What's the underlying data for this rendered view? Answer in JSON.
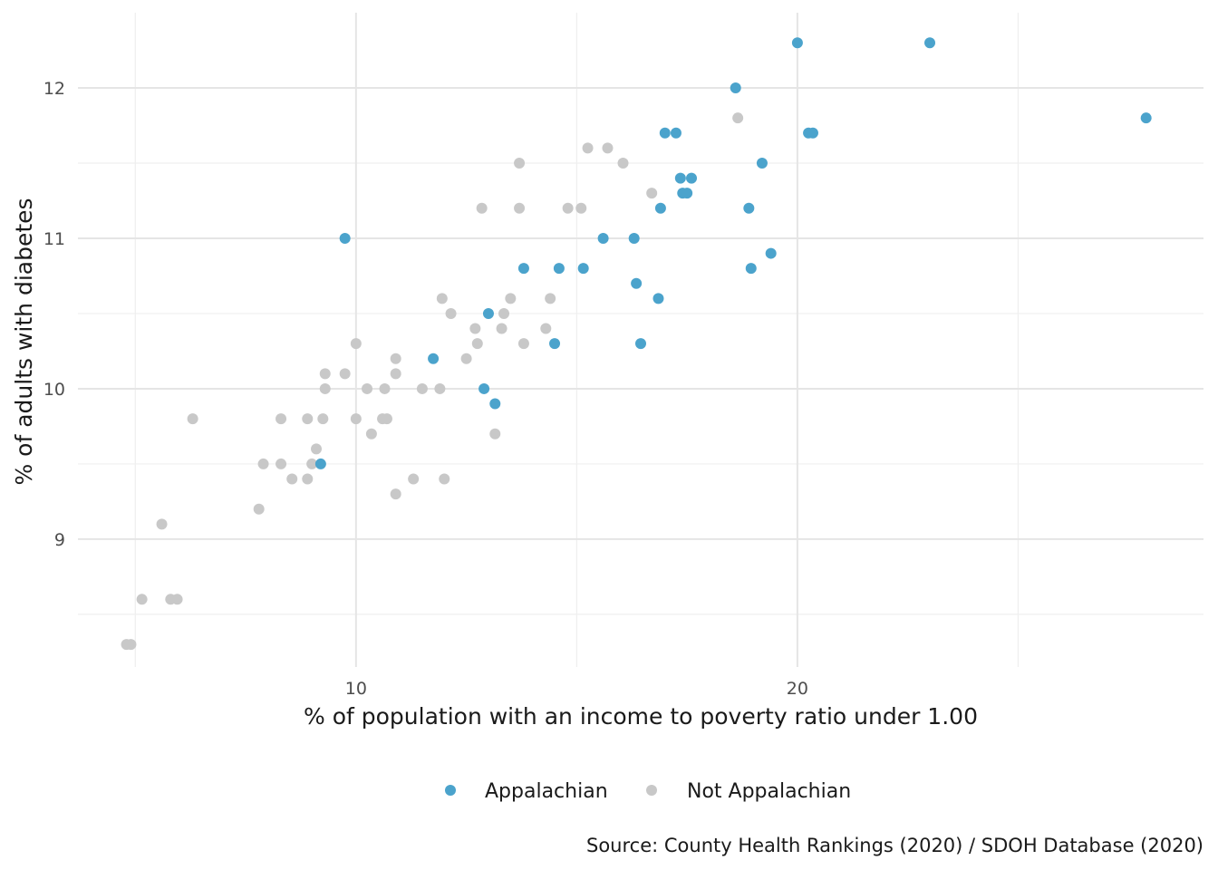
{
  "chart_data": {
    "type": "scatter",
    "xlabel": "% of population with an income to poverty ratio under 1.00",
    "ylabel": "% of adults with diabetes",
    "caption": "Source: County Health Rankings (2020) / SDOH Database (2020)",
    "xlim": [
      3.7,
      29.2
    ],
    "ylim": [
      8.15,
      12.5
    ],
    "x_ticks": [
      10,
      20
    ],
    "x_minor_ticks": [
      5,
      15,
      25
    ],
    "y_ticks": [
      9,
      10,
      11,
      12
    ],
    "y_minor_ticks": [
      8.5,
      9.5,
      10.5,
      11.5
    ],
    "grid": true,
    "legend_position": "bottom",
    "series": [
      {
        "name": "Appalachian",
        "color": "#4ba3cc",
        "points": [
          [
            20.0,
            12.3
          ],
          [
            23.0,
            12.3
          ],
          [
            18.6,
            12.0
          ],
          [
            27.9,
            11.8
          ],
          [
            17.0,
            11.7
          ],
          [
            17.25,
            11.7
          ],
          [
            20.25,
            11.7
          ],
          [
            20.35,
            11.7
          ],
          [
            19.2,
            11.5
          ],
          [
            17.35,
            11.4
          ],
          [
            17.6,
            11.4
          ],
          [
            17.4,
            11.3
          ],
          [
            17.5,
            11.3
          ],
          [
            16.9,
            11.2
          ],
          [
            18.9,
            11.2
          ],
          [
            9.75,
            11.0
          ],
          [
            15.6,
            11.0
          ],
          [
            16.3,
            11.0
          ],
          [
            19.4,
            10.9
          ],
          [
            13.8,
            10.8
          ],
          [
            14.6,
            10.8
          ],
          [
            15.15,
            10.8
          ],
          [
            18.95,
            10.8
          ],
          [
            16.35,
            10.7
          ],
          [
            16.85,
            10.6
          ],
          [
            13.0,
            10.5
          ],
          [
            14.5,
            10.3
          ],
          [
            16.45,
            10.3
          ],
          [
            11.75,
            10.2
          ],
          [
            12.9,
            10.0
          ],
          [
            13.15,
            9.9
          ],
          [
            9.2,
            9.5
          ]
        ]
      },
      {
        "name": "Not Appalachian",
        "color": "#c8c8c8",
        "points": [
          [
            18.65,
            11.8
          ],
          [
            15.25,
            11.6
          ],
          [
            15.7,
            11.6
          ],
          [
            13.7,
            11.5
          ],
          [
            16.05,
            11.5
          ],
          [
            16.7,
            11.3
          ],
          [
            12.85,
            11.2
          ],
          [
            13.7,
            11.2
          ],
          [
            14.8,
            11.2
          ],
          [
            15.1,
            11.2
          ],
          [
            11.95,
            10.6
          ],
          [
            13.5,
            10.6
          ],
          [
            14.4,
            10.6
          ],
          [
            12.15,
            10.5
          ],
          [
            13.35,
            10.5
          ],
          [
            12.7,
            10.4
          ],
          [
            13.3,
            10.4
          ],
          [
            14.3,
            10.4
          ],
          [
            10.0,
            10.3
          ],
          [
            12.75,
            10.3
          ],
          [
            13.8,
            10.3
          ],
          [
            10.9,
            10.2
          ],
          [
            12.5,
            10.2
          ],
          [
            9.3,
            10.1
          ],
          [
            9.75,
            10.1
          ],
          [
            10.9,
            10.1
          ],
          [
            9.3,
            10.0
          ],
          [
            10.25,
            10.0
          ],
          [
            10.65,
            10.0
          ],
          [
            11.5,
            10.0
          ],
          [
            11.9,
            10.0
          ],
          [
            6.3,
            9.8
          ],
          [
            8.3,
            9.8
          ],
          [
            8.9,
            9.8
          ],
          [
            9.25,
            9.8
          ],
          [
            10.0,
            9.8
          ],
          [
            10.6,
            9.8
          ],
          [
            10.7,
            9.8
          ],
          [
            10.35,
            9.7
          ],
          [
            13.15,
            9.7
          ],
          [
            9.1,
            9.6
          ],
          [
            7.9,
            9.5
          ],
          [
            8.3,
            9.5
          ],
          [
            9.0,
            9.5
          ],
          [
            8.55,
            9.4
          ],
          [
            8.9,
            9.4
          ],
          [
            11.3,
            9.4
          ],
          [
            12.0,
            9.4
          ],
          [
            10.9,
            9.3
          ],
          [
            7.8,
            9.2
          ],
          [
            5.6,
            9.1
          ],
          [
            5.15,
            8.6
          ],
          [
            5.8,
            8.6
          ],
          [
            5.95,
            8.6
          ],
          [
            4.8,
            8.3
          ],
          [
            4.9,
            8.3
          ]
        ]
      }
    ]
  }
}
